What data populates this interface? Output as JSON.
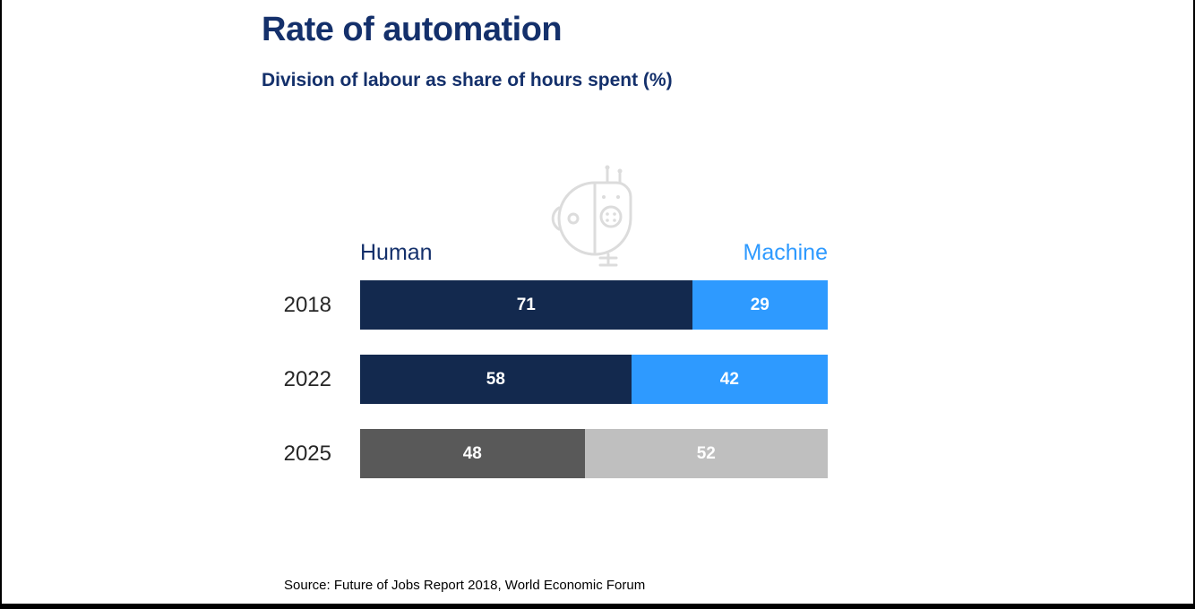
{
  "page": {
    "source": "Source: Future of Jobs Report 2018, World Economic Forum"
  },
  "chart_data": {
    "type": "bar",
    "orientation": "horizontal_stacked",
    "title": "Rate of automation",
    "subtitle": "Division of labour as share of hours spent (%)",
    "categories": [
      "2018",
      "2022",
      "2025"
    ],
    "series": [
      {
        "name": "Human",
        "values": [
          71,
          58,
          48
        ]
      },
      {
        "name": "Machine",
        "values": [
          29,
          42,
          52
        ]
      }
    ],
    "xlim": [
      0,
      100
    ],
    "value_labels": true,
    "legend": {
      "human": "Human",
      "machine": "Machine",
      "position": "top"
    },
    "row_colors": [
      {
        "human": "#13294e",
        "machine": "#2e9aff"
      },
      {
        "human": "#13294e",
        "machine": "#2e9aff"
      },
      {
        "human": "#595959",
        "machine": "#bfbfbf"
      }
    ],
    "text_colors": {
      "title": "#14306b",
      "human_legend": "#14306b",
      "machine_legend": "#2e9aff"
    }
  },
  "icons": {
    "robot": "robot-head-icon"
  }
}
